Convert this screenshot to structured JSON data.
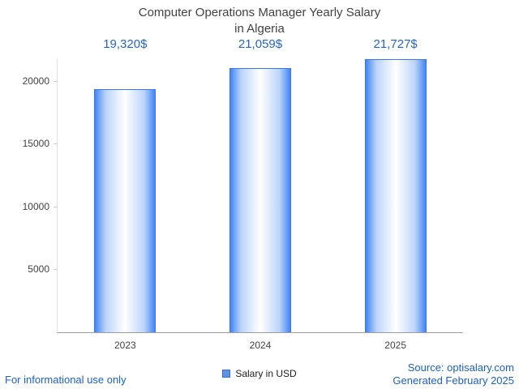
{
  "title": {
    "line1": "Computer Operations Manager Yearly Salary",
    "line2": "in Algeria"
  },
  "legend": {
    "label": "Salary in USD"
  },
  "footer": {
    "left": "For informational use only",
    "source": "Source: optisalary.com",
    "generated": "Generated February 2025"
  },
  "colors": {
    "bar_edge": "#4285f4",
    "bar_mid": "#ffffff",
    "bar_soft": "#bcd4f9",
    "bar_border": "#3b78e7",
    "value_label_blue": "#2264d1",
    "footer_blue": "#1a5fd0",
    "axis_text": "#424242",
    "legend_swatch": "#6191e3"
  },
  "chart_data": {
    "type": "bar",
    "title": "Computer Operations Manager Yearly Salary in Algeria",
    "categories": [
      "2023",
      "2024",
      "2025"
    ],
    "values": [
      19320,
      21059,
      21727
    ],
    "value_labels": [
      "19,320$",
      "21,059$",
      "21,727$"
    ],
    "series": [
      {
        "name": "Salary in USD",
        "values": [
          19320,
          21059,
          21727
        ]
      }
    ],
    "xlabel": "",
    "ylabel": "",
    "ylim": [
      0,
      21800
    ],
    "yticks": [
      5000,
      10000,
      15000,
      20000
    ],
    "grid": false,
    "legend_position": "bottom"
  }
}
